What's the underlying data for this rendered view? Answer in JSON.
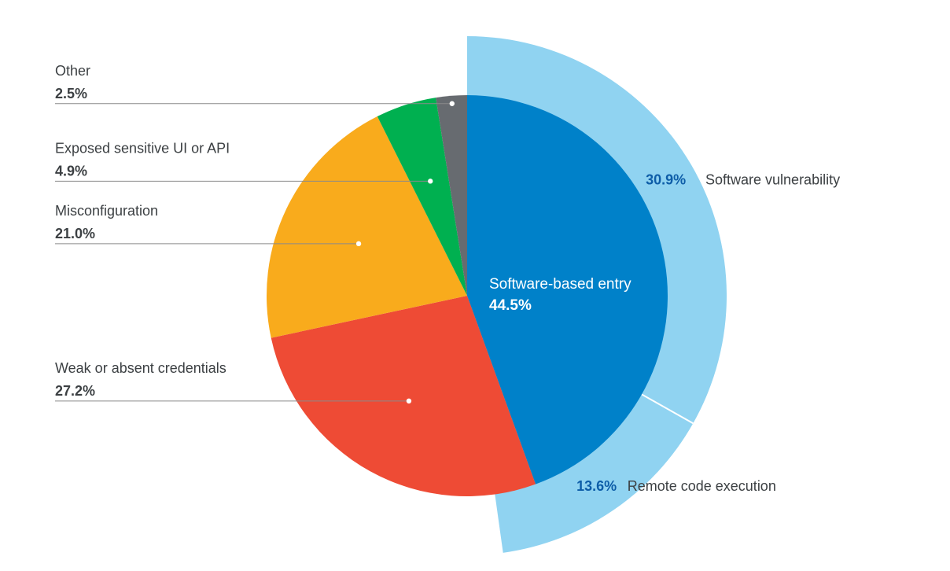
{
  "chart_data": {
    "type": "pie",
    "title": "",
    "slices": [
      {
        "label": "Software-based entry",
        "value": 44.5,
        "display": "44.5%",
        "color": "#0081C9"
      },
      {
        "label": "Weak or absent credentials",
        "value": 27.2,
        "display": "27.2%",
        "color": "#EE4B35"
      },
      {
        "label": "Misconfiguration",
        "value": 21.0,
        "display": "21.0%",
        "color": "#F9AB1C"
      },
      {
        "label": "Exposed sensitive UI or API",
        "value": 4.9,
        "display": "4.9%",
        "color": "#00B050"
      },
      {
        "label": "Other",
        "value": 2.5,
        "display": "2.5%",
        "color": "#676B70"
      }
    ],
    "breakdown": {
      "parent": "Software-based entry",
      "color": "#90D3F1",
      "value_color": "#0D5DA8",
      "segments": [
        {
          "label": "Software vulnerability",
          "value": 30.9,
          "display": "30.9%"
        },
        {
          "label": "Remote code execution",
          "value": 13.6,
          "display": "13.6%"
        }
      ]
    }
  }
}
